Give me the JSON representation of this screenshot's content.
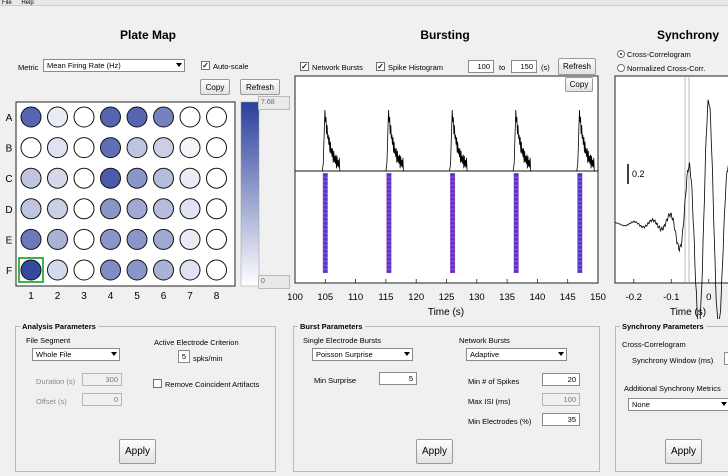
{
  "menu": [
    "File",
    "Help"
  ],
  "plate_map": {
    "title": "Plate Map",
    "metric_label": "Metric",
    "metric_value": "Mean Firing Rate (Hz)",
    "autoscale_label": "Auto-scale",
    "autoscale_checked": true,
    "copy_label": "Copy",
    "refresh_label": "Refresh",
    "rows": [
      "A",
      "B",
      "C",
      "D",
      "E",
      "F"
    ],
    "cols": [
      "1",
      "2",
      "3",
      "4",
      "5",
      "6",
      "7",
      "8"
    ],
    "levels": [
      [
        0.8,
        0.1,
        0.0,
        0.8,
        0.8,
        0.65,
        0.0,
        0.0
      ],
      [
        0.0,
        0.15,
        0.0,
        0.75,
        0.3,
        0.25,
        0.05,
        0.0
      ],
      [
        0.3,
        0.2,
        0.0,
        0.85,
        0.55,
        0.35,
        0.1,
        0.0
      ],
      [
        0.3,
        0.25,
        0.0,
        0.55,
        0.45,
        0.35,
        0.15,
        0.0
      ],
      [
        0.7,
        0.4,
        0.0,
        0.55,
        0.55,
        0.45,
        0.1,
        0.0
      ],
      [
        0.95,
        0.2,
        0.0,
        0.6,
        0.55,
        0.4,
        0.15,
        0.0
      ]
    ],
    "selected_well": "F1",
    "colorbar_max": "7.68",
    "colorbar_min": "0",
    "accent": "#3a4fa3"
  },
  "bursting": {
    "title": "Bursting",
    "network_bursts_label": "Network Bursts",
    "network_bursts_checked": true,
    "spike_histogram_label": "Spike Histogram",
    "spike_histogram_checked": true,
    "from_value": "100",
    "to_label": "to",
    "to_value": "150",
    "unit_label": "(s)",
    "refresh_label": "Refresh",
    "copy_label": "Copy",
    "zoom_in_label": "+",
    "zoom_out_label": "-",
    "fit_label": "=",
    "xlabel": "Time (s)",
    "x_ticks": [
      "100",
      "105",
      "110",
      "115",
      "120",
      "125",
      "130",
      "135",
      "140",
      "145",
      "150"
    ]
  },
  "synchrony": {
    "title": "Synchrony",
    "cross_corr_label": "Cross-Correlogram",
    "norm_cross_corr_label": "Normalized Cross-Corr.",
    "scale_label": "0.2",
    "xlabel": "Time (s)",
    "x_ticks": [
      "-0.2",
      "-0.1",
      "0",
      "0.1"
    ]
  },
  "chart_data": [
    {
      "type": "line",
      "xlabel": "Time (s)",
      "xlim": [
        100,
        150
      ],
      "network_burst_times": [
        105,
        115.5,
        126,
        136.5,
        147
      ],
      "description_series": "spike histogram with burst peaks and raster bars at each network burst"
    },
    {
      "type": "line",
      "xlabel": "Time (s)",
      "xlim": [
        -0.25,
        0.15
      ],
      "x_ticks": [
        -0.2,
        -0.1,
        0,
        0.1
      ],
      "scale_bar": 0.2
    }
  ],
  "analysis": {
    "title": "Analysis  Parameters",
    "file_segment_label": "File Segment",
    "file_segment_value": "Whole File",
    "duration_label": "Duration (s)",
    "duration_value": "300",
    "offset_label": "Offset (s)",
    "offset_value": "0",
    "criterion_label": "Active Electrode Criterion",
    "criterion_value": "5",
    "criterion_unit": "spks/min",
    "remove_artifacts_label": "Remove Coincident Artifacts",
    "apply_label": "Apply"
  },
  "burst_params": {
    "title": "Burst Parameters",
    "single_label": "Single Electrode Bursts",
    "single_value": "Poisson Surprise",
    "min_surprise_label": "Min Surprise",
    "min_surprise_value": "5",
    "network_label": "Network Bursts",
    "network_value": "Adaptive",
    "min_spikes_label": "Min # of Spikes",
    "min_spikes_value": "20",
    "max_isi_label": "Max ISI (ms)",
    "max_isi_value": "100",
    "min_electrodes_label": "Min Electrodes (%)",
    "min_electrodes_value": "35",
    "apply_label": "Apply"
  },
  "sync_params": {
    "title": "Synchrony Parameters",
    "cross_corr_label": "Cross-Correlogram",
    "window_label": "Synchrony Window (ms)",
    "additional_label": "Additional Synchrony Metrics",
    "additional_value": "None",
    "apply_label": "Apply"
  }
}
